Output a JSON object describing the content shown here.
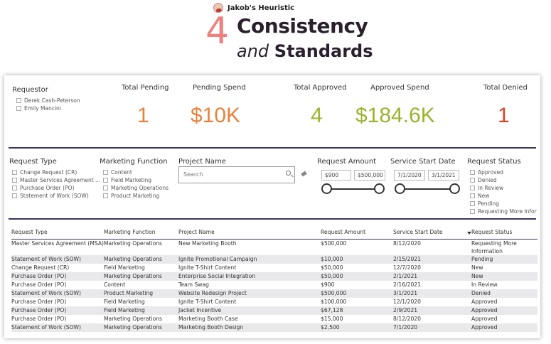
{
  "header": {
    "brand": "Jakob's Heuristic",
    "number": "4",
    "title_line1": "Consistency",
    "title_and": "and",
    "title_line2": "Standards"
  },
  "requestor": {
    "label": "Requestor",
    "options": [
      "Derek Cash-Peterson",
      "Emily Mancini"
    ]
  },
  "kpis": [
    {
      "label": "Total Pending",
      "value": "1",
      "color": "#e8823a"
    },
    {
      "label": "Pending Spend",
      "value": "$10K",
      "color": "#e8823a"
    },
    {
      "label": "Total Approved",
      "value": "4",
      "color": "#9ab32e"
    },
    {
      "label": "Approved Spend",
      "value": "$184.6K",
      "color": "#9ab32e"
    },
    {
      "label": "Total Denied",
      "value": "1",
      "color": "#d9442a"
    }
  ],
  "filters": {
    "request_type": {
      "label": "Request Type",
      "options": [
        "Change Request (CR)",
        "Master Services Agreement ...",
        "Purchase Order (PO)",
        "Statement of Work (SOW)"
      ]
    },
    "marketing_function": {
      "label": "Marketing Function",
      "options": [
        "Content",
        "Field Marketing",
        "Marketing Operations",
        "Product Marketing"
      ]
    },
    "project_name": {
      "label": "Project Name",
      "placeholder": "Search"
    },
    "request_amount": {
      "label": "Request Amount",
      "min": "$900",
      "max": "$500,000"
    },
    "service_start_date": {
      "label": "Service Start Date",
      "min": "7/1/2020",
      "max": "3/1/2021"
    },
    "request_status": {
      "label": "Request Status",
      "options": [
        "Approved",
        "Denied",
        "In Review",
        "New",
        "Pending",
        "Requesting More Infor"
      ]
    }
  },
  "table": {
    "columns": [
      "Request Type",
      "Marketing Function",
      "Project Name",
      "Request Amount",
      "Service Start Date",
      "Request Status"
    ],
    "rows": [
      [
        "Master Services Agreement (MSA)",
        "Marketing Operations",
        "New Marketing Booth",
        "$500,000",
        "8/12/2020",
        "Requesting More Information"
      ],
      [
        "Statement of Work (SOW)",
        "Marketing Operations",
        "Ignite Promotional Campaign",
        "$10,000",
        "2/15/2021",
        "Pending"
      ],
      [
        "Change Request (CR)",
        "Field Marketing",
        "Ignite T-Shirt Content",
        "$50,000",
        "12/7/2020",
        "New"
      ],
      [
        "Purchase Order (PO)",
        "Marketing Operations",
        "Enterprise Social Integration",
        "$50,000",
        "2/1/2021",
        "New"
      ],
      [
        "Purchase Order (PO)",
        "Content",
        "Team Swag",
        "$900",
        "2/16/2021",
        "In Review"
      ],
      [
        "Statement of Work (SOW)",
        "Product Marketing",
        "Website Redesign Project",
        "$500,000",
        "3/1/2021",
        "Denied"
      ],
      [
        "Purchase Order (PO)",
        "Field Marketing",
        "Ignite T-Shirt Content",
        "$100,000",
        "12/1/2020",
        "Approved"
      ],
      [
        "Purchase Order (PO)",
        "Field Marketing",
        "Jacket Incentive",
        "$67,128",
        "2/9/2021",
        "Approved"
      ],
      [
        "Purchase Order (PO)",
        "Marketing Operations",
        "Marketing Booth Case",
        "$15,000",
        "8/12/2020",
        "Approved"
      ],
      [
        "Statement of Work (SOW)",
        "Marketing Operations",
        "Marketing Booth Design",
        "$2,500",
        "7/1/2020",
        "Approved"
      ]
    ]
  }
}
